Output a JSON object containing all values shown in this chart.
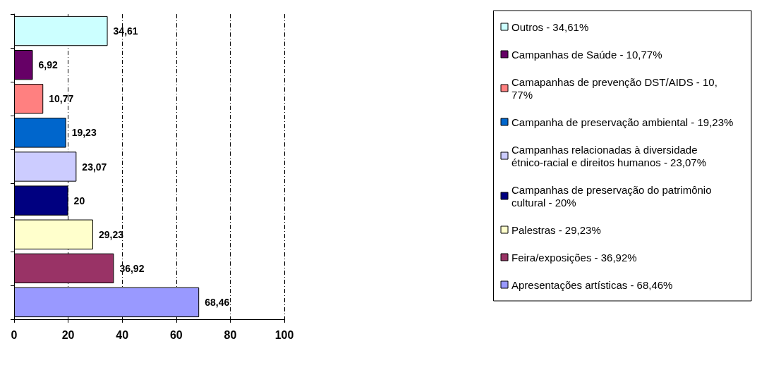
{
  "chart_data": {
    "type": "bar",
    "orientation": "horizontal",
    "stacked": true,
    "categories": [
      null,
      null,
      null,
      null,
      null,
      null,
      null,
      null,
      null
    ],
    "series": [
      {
        "name": "Outros - 34,61%",
        "color": "#ccffff",
        "values": [
          34.61,
          null,
          null,
          null,
          null,
          null,
          null,
          null,
          null
        ],
        "value_labels": [
          "34,61",
          null,
          null,
          null,
          null,
          null,
          null,
          null,
          null
        ]
      },
      {
        "name": "Campanhas de Saúde - 10,77%",
        "color": "#660066",
        "values": [
          null,
          6.92,
          null,
          null,
          null,
          null,
          null,
          null,
          null
        ],
        "value_labels": [
          null,
          "6,92",
          null,
          null,
          null,
          null,
          null,
          null,
          null
        ]
      },
      {
        "name": "Camapanhas de prevenção DST/AIDS - 10,77%",
        "color": "#ff8080",
        "values": [
          null,
          null,
          10.77,
          null,
          null,
          null,
          null,
          null,
          null
        ],
        "value_labels": [
          null,
          null,
          "10,77",
          null,
          null,
          null,
          null,
          null,
          null
        ]
      },
      {
        "name": "Campanha de preservação ambiental - 19,23%",
        "color": "#0066cc",
        "values": [
          null,
          null,
          null,
          19.23,
          null,
          null,
          null,
          null,
          null
        ],
        "value_labels": [
          null,
          null,
          null,
          "19,23",
          null,
          null,
          null,
          null,
          null
        ]
      },
      {
        "name": "Campanhas relacionadas à diversidade étnico-racial e direitos humanos - 23,07%",
        "color": "#ccccff",
        "values": [
          null,
          null,
          null,
          null,
          23.07,
          null,
          null,
          null,
          null
        ],
        "value_labels": [
          null,
          null,
          null,
          null,
          "23,07",
          null,
          null,
          null,
          null
        ]
      },
      {
        "name": "Campanhas de preservação do patrimônio cultural - 20%",
        "color": "#000080",
        "values": [
          null,
          null,
          null,
          null,
          null,
          20,
          null,
          null,
          null
        ],
        "value_labels": [
          null,
          null,
          null,
          null,
          null,
          "20",
          null,
          null,
          null
        ]
      },
      {
        "name": "Palestras - 29,23%",
        "color": "#ffffcc",
        "values": [
          null,
          null,
          null,
          null,
          null,
          null,
          29.23,
          null,
          null
        ],
        "value_labels": [
          null,
          null,
          null,
          null,
          null,
          null,
          "29,23",
          null,
          null
        ]
      },
      {
        "name": "Feira/exposições - 36,92%",
        "color": "#993366",
        "values": [
          null,
          null,
          null,
          null,
          null,
          null,
          null,
          36.92,
          null
        ],
        "value_labels": [
          null,
          null,
          null,
          null,
          null,
          null,
          null,
          "36,92",
          null
        ]
      },
      {
        "name": "Apresentações artísticas - 68,46%",
        "color": "#9999ff",
        "values": [
          null,
          null,
          null,
          null,
          null,
          null,
          null,
          null,
          68.46
        ],
        "value_labels": [
          null,
          null,
          null,
          null,
          null,
          null,
          null,
          null,
          "68,46"
        ]
      }
    ],
    "xlim": [
      0,
      100
    ],
    "xticks": [
      0,
      20,
      40,
      60,
      80,
      100
    ],
    "grid": "x",
    "legend": "right"
  }
}
